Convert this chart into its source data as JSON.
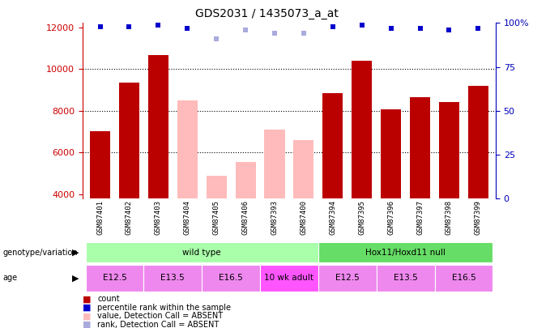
{
  "title": "GDS2031 / 1435073_a_at",
  "samples": [
    "GSM87401",
    "GSM87402",
    "GSM87403",
    "GSM87404",
    "GSM87405",
    "GSM87406",
    "GSM87393",
    "GSM87400",
    "GSM87394",
    "GSM87395",
    "GSM87396",
    "GSM87397",
    "GSM87398",
    "GSM87399"
  ],
  "count_values": [
    7000,
    9350,
    10650,
    8500,
    4900,
    5550,
    7100,
    6600,
    8850,
    10400,
    8050,
    8650,
    8400,
    9200
  ],
  "absent_flags": [
    false,
    false,
    false,
    true,
    true,
    true,
    true,
    true,
    false,
    false,
    false,
    false,
    false,
    false
  ],
  "percentile_ranks": [
    98,
    98,
    99,
    97,
    91,
    96,
    94,
    94,
    98,
    99,
    97,
    97,
    96,
    97
  ],
  "absent_rank_flags": [
    false,
    false,
    false,
    false,
    true,
    true,
    true,
    true,
    false,
    false,
    false,
    false,
    false,
    false
  ],
  "ylim_left": [
    3800,
    12200
  ],
  "ylim_right": [
    0,
    100
  ],
  "yticks_left": [
    4000,
    6000,
    8000,
    10000,
    12000
  ],
  "yticks_right": [
    0,
    25,
    50,
    75,
    100
  ],
  "bar_color_present": "#bb0000",
  "bar_color_absent": "#ffbbbb",
  "dot_color_present": "#0000cc",
  "dot_color_absent": "#aaaadd",
  "background_color": "#ffffff",
  "genotype_groups": [
    {
      "label": "wild type",
      "start": 0,
      "end": 8,
      "color": "#aaffaa"
    },
    {
      "label": "Hox11/Hoxd11 null",
      "start": 8,
      "end": 14,
      "color": "#66dd66"
    }
  ],
  "age_groups": [
    {
      "label": "E12.5",
      "start": 0,
      "end": 2,
      "color": "#ee88ee"
    },
    {
      "label": "E13.5",
      "start": 2,
      "end": 4,
      "color": "#ee88ee"
    },
    {
      "label": "E16.5",
      "start": 4,
      "end": 6,
      "color": "#ee88ee"
    },
    {
      "label": "10 wk adult",
      "start": 6,
      "end": 8,
      "color": "#ff55ff"
    },
    {
      "label": "E12.5",
      "start": 8,
      "end": 10,
      "color": "#ee88ee"
    },
    {
      "label": "E13.5",
      "start": 10,
      "end": 12,
      "color": "#ee88ee"
    },
    {
      "label": "E16.5",
      "start": 12,
      "end": 14,
      "color": "#ee88ee"
    }
  ],
  "legend_items": [
    {
      "label": "count",
      "color": "#bb0000"
    },
    {
      "label": "percentile rank within the sample",
      "color": "#0000cc"
    },
    {
      "label": "value, Detection Call = ABSENT",
      "color": "#ffbbbb"
    },
    {
      "label": "rank, Detection Call = ABSENT",
      "color": "#aaaadd"
    }
  ],
  "tick_label_color_left": "#cc0000",
  "tick_label_color_right": "#0000bb",
  "sample_label_bg": "#cccccc",
  "grid_dotted_color": "#000000"
}
